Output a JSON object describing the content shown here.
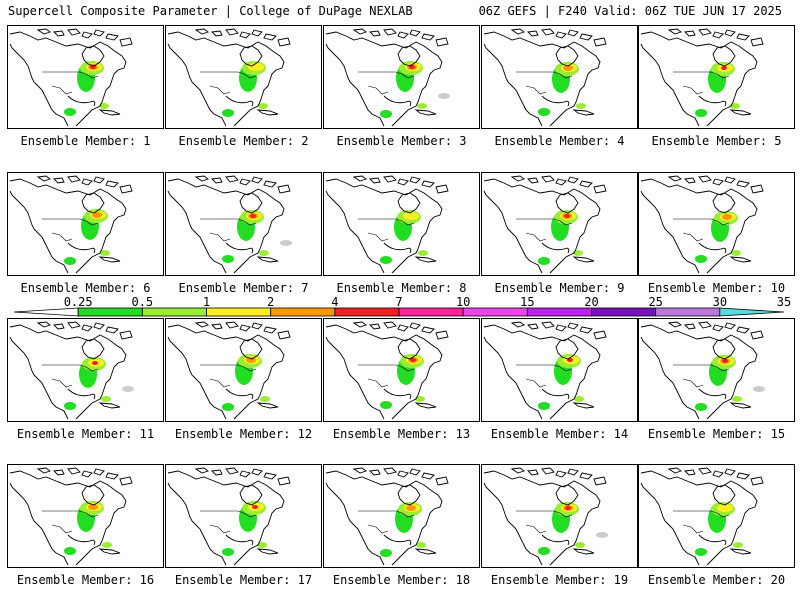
{
  "header": {
    "left": "Supercell Composite Parameter | College of DuPage NEXLAB",
    "right": "06Z GEFS | F240 Valid: 06Z TUE JUN 17 2025"
  },
  "scale": {
    "ticks": [
      "0.25",
      "0.5",
      "1",
      "2",
      "4",
      "7",
      "10",
      "15",
      "20",
      "25",
      "30",
      "35"
    ],
    "colors": [
      "#ffffff",
      "#22dd22",
      "#99ee33",
      "#ffee22",
      "#ff9900",
      "#ee2222",
      "#ff2299",
      "#ee44ee",
      "#bb22ee",
      "#7711bb",
      "#bb77dd",
      "#55dddd"
    ]
  },
  "panels": [
    {
      "label": "Ensemble Member: 1"
    },
    {
      "label": "Ensemble Member: 2"
    },
    {
      "label": "Ensemble Member: 3"
    },
    {
      "label": "Ensemble Member: 4"
    },
    {
      "label": "Ensemble Member: 5"
    },
    {
      "label": "Ensemble Member: 6"
    },
    {
      "label": "Ensemble Member: 7"
    },
    {
      "label": "Ensemble Member: 8"
    },
    {
      "label": "Ensemble Member: 9"
    },
    {
      "label": "Ensemble Member: 10"
    },
    {
      "label": "Ensemble Member: 11"
    },
    {
      "label": "Ensemble Member: 12"
    },
    {
      "label": "Ensemble Member: 13"
    },
    {
      "label": "Ensemble Member: 14"
    },
    {
      "label": "Ensemble Member: 15"
    },
    {
      "label": "Ensemble Member: 16"
    },
    {
      "label": "Ensemble Member: 17"
    },
    {
      "label": "Ensemble Member: 18"
    },
    {
      "label": "Ensemble Member: 19"
    },
    {
      "label": "Ensemble Member: 20"
    }
  ]
}
